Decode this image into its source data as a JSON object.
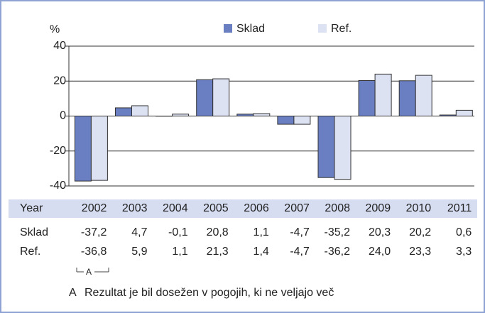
{
  "chart_data": {
    "type": "bar",
    "ylabel": "%",
    "category_label": "Year",
    "categories": [
      "2002",
      "2003",
      "2004",
      "2005",
      "2006",
      "2007",
      "2008",
      "2009",
      "2010",
      "2011"
    ],
    "series": [
      {
        "name": "Sklad",
        "color": "#6a7ec2",
        "values": [
          -37.2,
          4.7,
          -0.1,
          20.8,
          1.1,
          -4.7,
          -35.2,
          20.3,
          20.2,
          0.6
        ],
        "value_labels": [
          "-37,2",
          "4,7",
          "-0,1",
          "20,8",
          "1,1",
          "-4,7",
          "-35,2",
          "20,3",
          "20,2",
          "0,6"
        ]
      },
      {
        "name": "Ref.",
        "color": "#dde2f3",
        "values": [
          -36.8,
          5.9,
          1.1,
          21.3,
          1.4,
          -4.7,
          -36.2,
          24.0,
          23.3,
          3.3
        ],
        "value_labels": [
          "-36,8",
          "5,9",
          "1,1",
          "21,3",
          "1,4",
          "-4,7",
          "-36,2",
          "24,0",
          "23,3",
          "3,3"
        ]
      }
    ],
    "ylim": [
      -40,
      40
    ],
    "yticks": [
      -40,
      -20,
      0,
      20,
      40
    ],
    "grid": true,
    "annotation": {
      "label": "A",
      "text": "Rezultat je bil dosežen v pogojih, ki ne veljajo več"
    }
  }
}
